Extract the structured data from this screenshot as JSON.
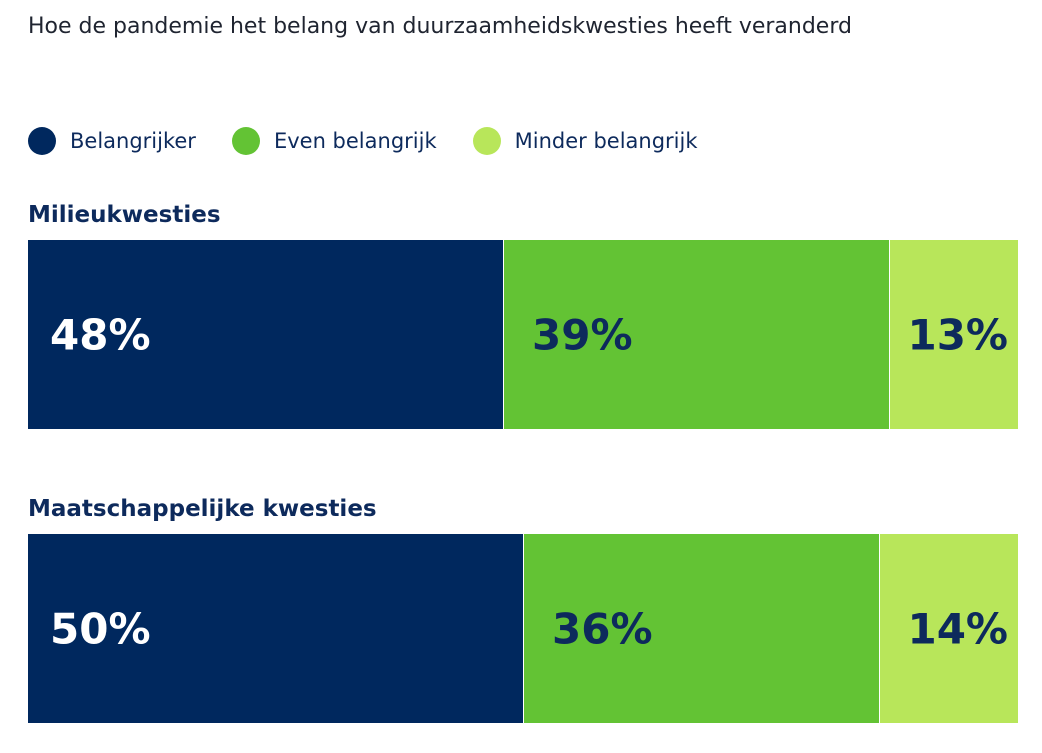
{
  "title": "Hoe de pandemie het belang van duurzaamheidskwesties heeft veranderd",
  "legend": [
    {
      "label": "Belangrijker",
      "color": "#00285e"
    },
    {
      "label": "Even belangrijk",
      "color": "#63c334"
    },
    {
      "label": "Minder belangrijk",
      "color": "#b8e65a"
    }
  ],
  "chart_data": {
    "type": "bar",
    "orientation": "horizontal",
    "stacked": true,
    "normalized": true,
    "title": "Hoe de pandemie het belang van duurzaamheidskwesties heeft veranderd",
    "categories": [
      "Milieukwesties",
      "Maatschappelijke kwesties"
    ],
    "series": [
      {
        "name": "Belangrijker",
        "color": "#00285e",
        "values": [
          48,
          50
        ],
        "labels": [
          "48%",
          "50%"
        ]
      },
      {
        "name": "Even belangrijk",
        "color": "#63c334",
        "values": [
          39,
          36
        ],
        "labels": [
          "39%",
          "36%"
        ]
      },
      {
        "name": "Minder belangrijk",
        "color": "#b8e65a",
        "values": [
          13,
          14
        ],
        "labels": [
          "13%",
          "14%"
        ]
      }
    ],
    "unit": "%",
    "legend_position": "top-left",
    "grid": false,
    "axes_visible": false
  }
}
